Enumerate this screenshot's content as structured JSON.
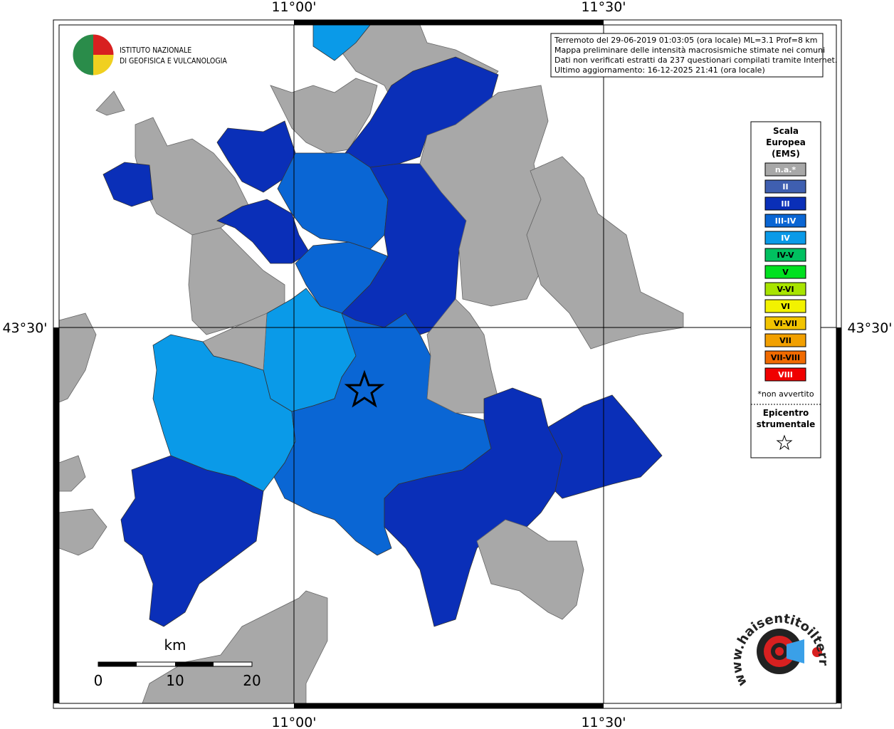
{
  "frame": {
    "top_labels": [
      "11°00'",
      "11°30'"
    ],
    "bottom_labels": [
      "11°00'",
      "11°30'"
    ],
    "left_label": "43°30'",
    "right_label": "43°30'"
  },
  "logo": {
    "lines": [
      "ISTITUTO NAZIONALE",
      "DI GEOFISICA E VULCANOLOGIA"
    ]
  },
  "info": {
    "lines": [
      "Terremoto del 29-06-2019 01:03:05 (ora locale) ML=3.1 Prof=8 km",
      "Mappa preliminare delle intensità macrosismiche stimate nei comuni",
      "Dati non verificati estratti da 237 questionari compilati tramite Internet.",
      "Ultimo aggiornamento: 16-12-2025 21:41 (ora locale)"
    ]
  },
  "legend": {
    "title": [
      "Scala",
      "Europea",
      "(EMS)"
    ],
    "items": [
      {
        "label": "n.a.*",
        "color": "#a8a8a8"
      },
      {
        "label": "II",
        "color": "#3f5fb0"
      },
      {
        "label": "III",
        "color": "#0a2fb8"
      },
      {
        "label": "III-IV",
        "color": "#0a66d4"
      },
      {
        "label": "IV",
        "color": "#0a9ae8"
      },
      {
        "label": "IV-V",
        "color": "#00c060"
      },
      {
        "label": "V",
        "color": "#00e020"
      },
      {
        "label": "V-VI",
        "color": "#a8e400"
      },
      {
        "label": "VI",
        "color": "#f2f200"
      },
      {
        "label": "VI-VII",
        "color": "#f2c400"
      },
      {
        "label": "VII",
        "color": "#f2a000"
      },
      {
        "label": "VII-VIII",
        "color": "#f06a00"
      },
      {
        "label": "VIII",
        "color": "#f00000"
      }
    ],
    "note": "*non avvertito",
    "epicenter": [
      "Epicentro",
      "strumentale"
    ]
  },
  "scale_bar": {
    "unit": "km",
    "labels": [
      "0",
      "10",
      "20"
    ]
  },
  "footer_logo": "www.haisentitoilterremoto.it"
}
